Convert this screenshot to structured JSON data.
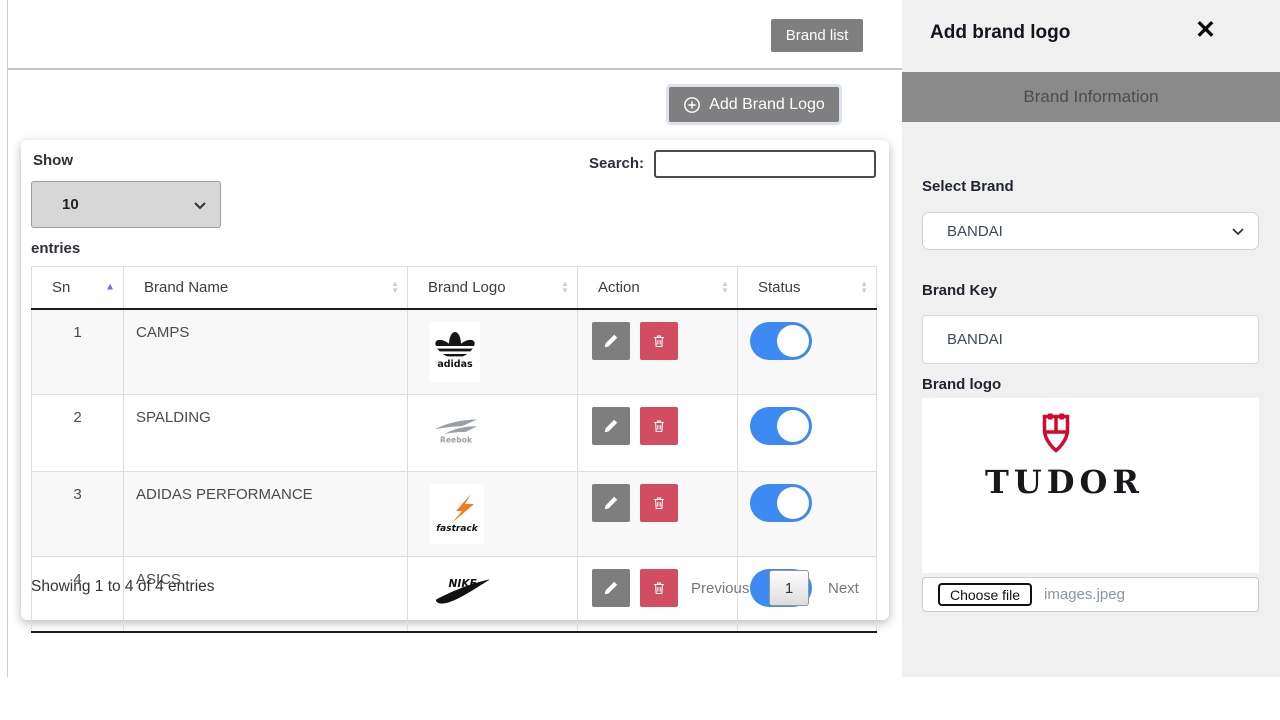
{
  "header": {
    "brand_list_button": "Brand list"
  },
  "toolbar": {
    "add_brand_logo_button": "Add Brand Logo"
  },
  "table_card": {
    "show_label": "Show",
    "page_size_value": "10",
    "entries_label": "entries",
    "search_label": "Search:",
    "search_value": "",
    "columns": [
      {
        "label": "Sn",
        "sort": "asc"
      },
      {
        "label": "Brand Name",
        "sort": "none"
      },
      {
        "label": "Brand Logo",
        "sort": "none"
      },
      {
        "label": "Action",
        "sort": "none"
      },
      {
        "label": "Status",
        "sort": "none"
      }
    ],
    "rows": [
      {
        "sn": "1",
        "brand_name": "CAMPS",
        "logo": "adidas-logo",
        "status": "on"
      },
      {
        "sn": "2",
        "brand_name": "SPALDING",
        "logo": "reebok-logo",
        "status": "on"
      },
      {
        "sn": "3",
        "brand_name": "ADIDAS PERFORMANCE",
        "logo": "fastrack-logo",
        "status": "on"
      },
      {
        "sn": "4",
        "brand_name": "ASICS",
        "logo": "nike-logo",
        "status": "on"
      }
    ],
    "footer": {
      "info": "Showing 1 to 4 of 4 entries",
      "previous": "Previous",
      "page": "1",
      "next": "Next"
    }
  },
  "panel": {
    "title": "Add brand logo",
    "close_icon": "✕",
    "section_header": "Brand Information",
    "select_brand_label": "Select Brand",
    "select_brand_value": "BANDAI",
    "brand_key_label": "Brand Key",
    "brand_key_value": "BANDAI",
    "brand_logo_label": "Brand logo",
    "logo_preview_text": "TUDOR",
    "choose_file_button": "Choose file",
    "file_name": "images.jpeg"
  },
  "colors": {
    "accent_blue": "#3d8bf2",
    "danger_red": "#d24d5f",
    "button_gray": "#7f7f7f",
    "panel_bar_gray": "#8a8a8a",
    "sort_active_purple": "#7b68ee",
    "tudor_red": "#d20a2e",
    "fastrack_orange": "#f47c20"
  }
}
